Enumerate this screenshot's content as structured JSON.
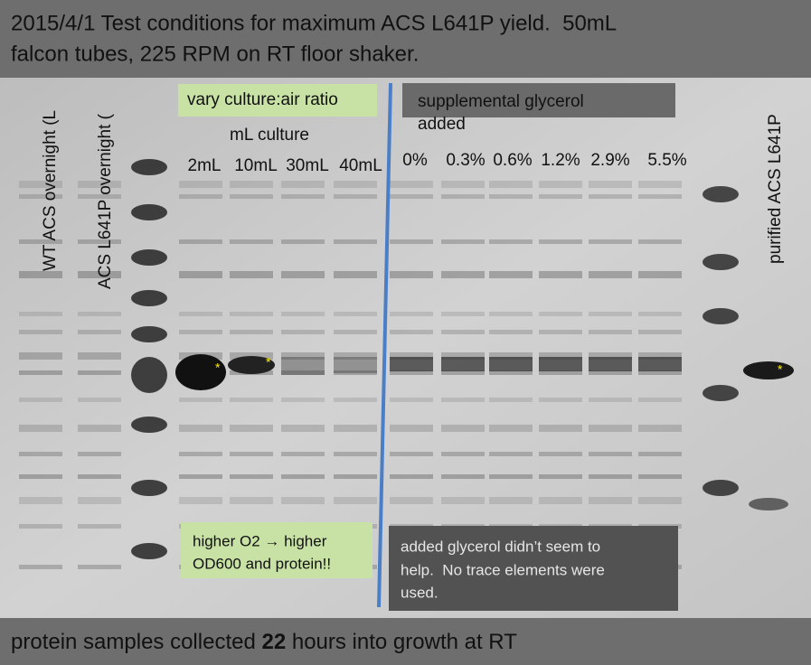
{
  "header": {
    "lines": [
      "2015/4/1 Test conditions for maximum ACS L641P yield.  50mL",
      "falcon tubes, 225 RPM on RT floor shaker."
    ]
  },
  "lanes": {
    "wt": "WT ACS overnight (L",
    "l641p": "ACS L641P overnight (",
    "purified": "purified ACS L641P"
  },
  "culture": {
    "title": "vary culture:air ratio",
    "subtitle": "mL culture",
    "labels": [
      "2mL",
      "10mL",
      "30mL",
      "40mL"
    ]
  },
  "glycerol": {
    "title": [
      "supplemental glycerol",
      "added"
    ],
    "labels": [
      "0%",
      "0.3%",
      "0.6%",
      "1.2%",
      "2.9%",
      "5.5%"
    ]
  },
  "markers": [
    "*",
    "*",
    "*"
  ],
  "notes": {
    "culture": [
      "higher O2 → higher",
      "OD600 and protein!!"
    ],
    "glycerol": [
      "added glycerol didn’t seem to",
      "help.  No trace elements were",
      "used."
    ]
  },
  "footer": [
    "protein samples collected ",
    "22",
    " hours into growth at RT"
  ]
}
